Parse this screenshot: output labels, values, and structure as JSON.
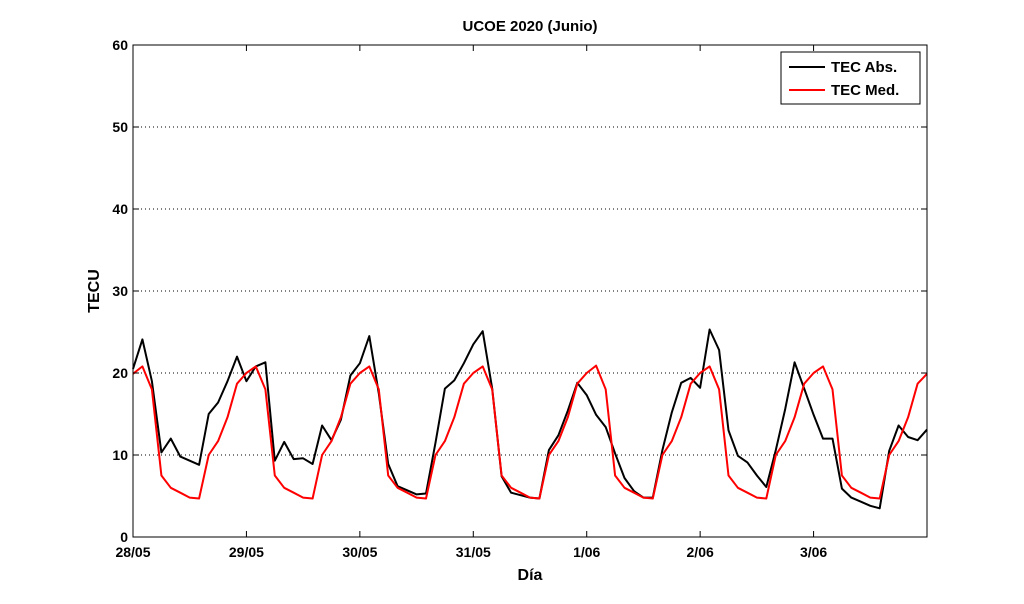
{
  "chart_data": {
    "type": "line",
    "title": "UCOE 2020 (Junio)",
    "xlabel": "Día",
    "ylabel": "TECU",
    "ylim": [
      0,
      60
    ],
    "yticks": [
      0,
      10,
      20,
      30,
      40,
      50,
      60
    ],
    "xticks": [
      {
        "pos": 0,
        "label": "28/05"
      },
      {
        "pos": 1,
        "label": "29/05"
      },
      {
        "pos": 2,
        "label": "30/05"
      },
      {
        "pos": 3,
        "label": "31/05"
      },
      {
        "pos": 4,
        "label": "1/06"
      },
      {
        "pos": 5,
        "label": "2/06"
      },
      {
        "pos": 6,
        "label": "3/06"
      }
    ],
    "xlim": [
      0,
      7
    ],
    "grid": "y-dotted",
    "legend_position": "top-right",
    "series": [
      {
        "name": "TEC Abs.",
        "color": "#000000",
        "x": [
          0,
          0.083,
          0.167,
          0.25,
          0.333,
          0.417,
          0.5,
          0.583,
          0.667,
          0.75,
          0.833,
          0.917,
          1,
          1.083,
          1.167,
          1.25,
          1.333,
          1.417,
          1.5,
          1.583,
          1.667,
          1.75,
          1.833,
          1.917,
          2,
          2.083,
          2.167,
          2.25,
          2.333,
          2.417,
          2.5,
          2.583,
          2.667,
          2.75,
          2.833,
          2.917,
          3,
          3.083,
          3.167,
          3.25,
          3.333,
          3.417,
          3.5,
          3.583,
          3.667,
          3.75,
          3.833,
          3.917,
          4,
          4.083,
          4.167,
          4.25,
          4.333,
          4.417,
          4.5,
          4.583,
          4.667,
          4.75,
          4.833,
          4.917,
          5,
          5.083,
          5.167,
          5.25,
          5.333,
          5.417,
          5.5,
          5.583,
          5.667,
          5.75,
          5.833,
          5.917,
          6,
          6.083,
          6.167,
          6.25,
          6.333,
          6.417,
          6.5,
          6.583,
          6.667,
          6.75,
          6.833,
          6.917,
          7
        ],
        "y": [
          20.5,
          24.1,
          19,
          10.3,
          12,
          9.8,
          9.3,
          8.8,
          15,
          16.4,
          19,
          22,
          19,
          20.8,
          21.3,
          9.3,
          11.6,
          9.5,
          9.6,
          8.9,
          13.6,
          11.8,
          14.3,
          19.7,
          21.2,
          24.5,
          17.5,
          8.9,
          6.2,
          5.7,
          5.2,
          5.3,
          11.5,
          18.1,
          19.1,
          21.2,
          23.5,
          25.1,
          18.1,
          7.4,
          5.4,
          5.1,
          4.8,
          4.7,
          10.6,
          12.4,
          15.4,
          18.8,
          17.3,
          14.9,
          13.4,
          10.2,
          7.2,
          5.6,
          4.8,
          4.8,
          10.6,
          15.2,
          18.8,
          19.4,
          18.2,
          25.3,
          22.8,
          13,
          9.9,
          9.1,
          7.5,
          6.1,
          10.6,
          15.6,
          21.3,
          18.1,
          14.9,
          12,
          12,
          5.9,
          4.8,
          4.3,
          3.8,
          3.5,
          10.5,
          13.6,
          12.2,
          11.8,
          13.1
        ]
      },
      {
        "name": "TEC Med.",
        "color": "#ff0000",
        "x": [
          0,
          0.083,
          0.167,
          0.25,
          0.333,
          0.417,
          0.5,
          0.583,
          0.667,
          0.75,
          0.833,
          0.917,
          1,
          1.083,
          1.167,
          1.25,
          1.333,
          1.417,
          1.5,
          1.583,
          1.667,
          1.75,
          1.833,
          1.917,
          2,
          2.083,
          2.167,
          2.25,
          2.333,
          2.417,
          2.5,
          2.583,
          2.667,
          2.75,
          2.833,
          2.917,
          3,
          3.083,
          3.167,
          3.25,
          3.333,
          3.417,
          3.5,
          3.583,
          3.667,
          3.75,
          3.833,
          3.917,
          4,
          4.083,
          4.167,
          4.25,
          4.333,
          4.417,
          4.5,
          4.583,
          4.667,
          4.75,
          4.833,
          4.917,
          5,
          5.083,
          5.167,
          5.25,
          5.333,
          5.417,
          5.5,
          5.583,
          5.667,
          5.75,
          5.833,
          5.917,
          6,
          6.083,
          6.167,
          6.25,
          6.333,
          6.417,
          6.5,
          6.583,
          6.667,
          6.75,
          6.833,
          6.917,
          7
        ],
        "y": [
          19.9,
          20.8,
          18,
          7.5,
          6,
          5.4,
          4.8,
          4.7,
          10,
          11.7,
          14.6,
          18.7,
          20,
          20.8,
          18,
          7.5,
          6,
          5.4,
          4.8,
          4.7,
          10,
          11.7,
          14.6,
          18.7,
          20,
          20.8,
          18,
          7.5,
          6,
          5.4,
          4.8,
          4.7,
          10,
          11.7,
          14.6,
          18.7,
          20,
          20.8,
          18,
          7.5,
          6,
          5.4,
          4.8,
          4.7,
          10,
          11.7,
          14.6,
          18.7,
          20,
          20.9,
          18,
          7.5,
          6,
          5.4,
          4.8,
          4.7,
          10,
          11.7,
          14.6,
          18.7,
          20,
          20.8,
          18,
          7.5,
          6,
          5.4,
          4.8,
          4.7,
          10,
          11.7,
          14.6,
          18.7,
          20,
          20.8,
          18,
          7.5,
          6,
          5.4,
          4.8,
          4.7,
          10,
          11.7,
          14.6,
          18.7,
          19.9
        ]
      }
    ]
  }
}
